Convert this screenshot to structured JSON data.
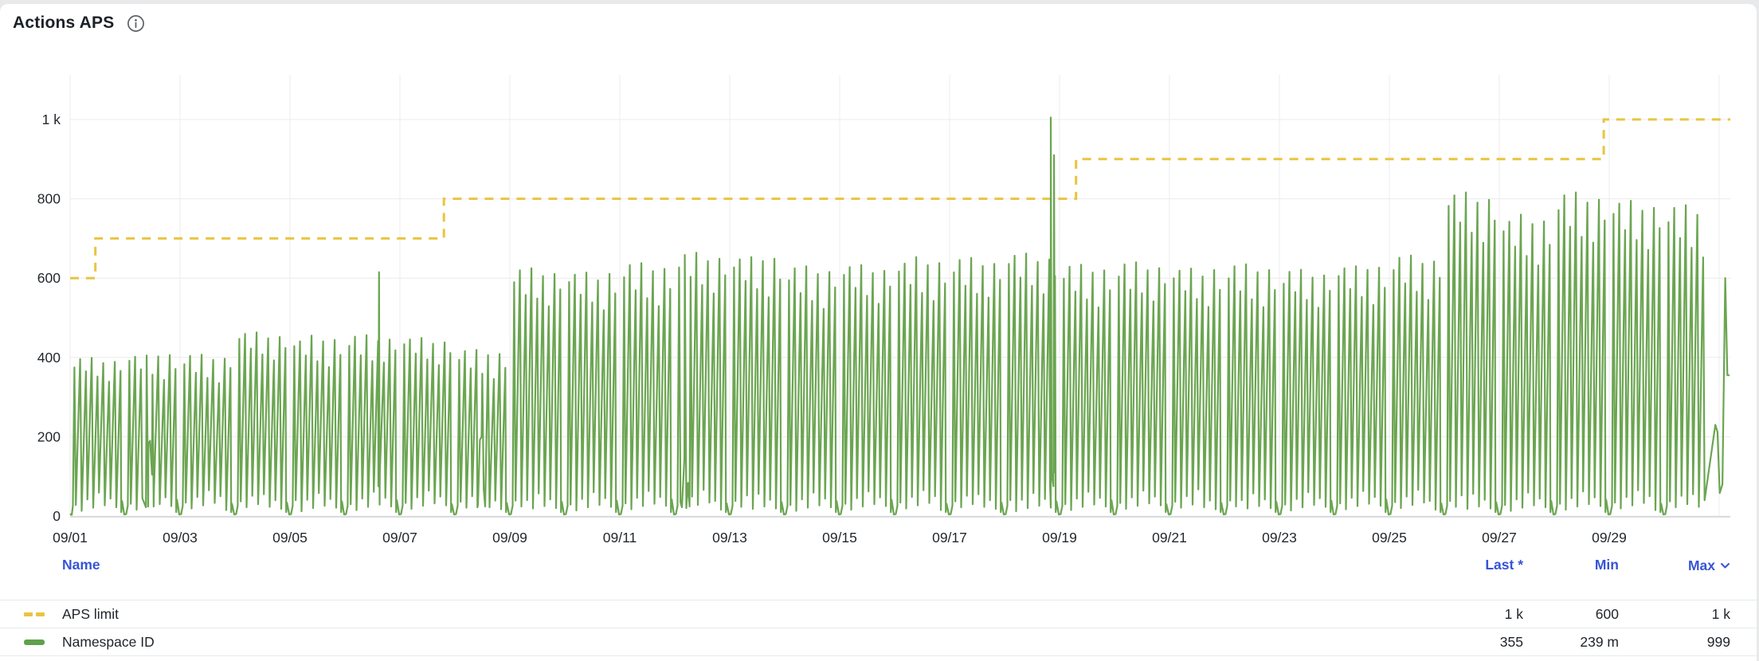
{
  "panel": {
    "title": "Actions APS"
  },
  "colors": {
    "accent_blue": "#3654d4",
    "series_green": "#6ba551",
    "series_yellow": "#e9c440",
    "grid": "#ececec",
    "axis_line": "#d0d3d5",
    "text_dark": "#24292e",
    "page_bg": "#e8e9ea",
    "card_bg": "#ffffff"
  },
  "chart_data": {
    "type": "line",
    "title": "Actions APS",
    "x_tick_labels": [
      "09/01",
      "09/03",
      "09/05",
      "09/07",
      "09/09",
      "09/11",
      "09/13",
      "09/15",
      "09/17",
      "09/19",
      "09/21",
      "09/23",
      "09/25",
      "09/27",
      "09/29"
    ],
    "x_axis_span_days": 30.2,
    "y_ticks": [
      {
        "value": 0,
        "label": "0"
      },
      {
        "value": 200,
        "label": "200"
      },
      {
        "value": 400,
        "label": "400"
      },
      {
        "value": 600,
        "label": "600"
      },
      {
        "value": 800,
        "label": "800"
      },
      {
        "value": 1000,
        "label": "1 k"
      }
    ],
    "ylim": [
      0,
      1050
    ],
    "grid": true,
    "legend_position": "bottom-table",
    "series": [
      {
        "name": "APS limit",
        "color": "#e9c440",
        "line_style": "dashed",
        "shape": "step",
        "steps": [
          {
            "start_day": 0.0,
            "value": 600
          },
          {
            "start_day": 0.46,
            "value": 700
          },
          {
            "start_day": 6.8,
            "value": 800
          },
          {
            "start_day": 18.3,
            "value": 900
          },
          {
            "start_day": 27.9,
            "value": 1000
          }
        ]
      },
      {
        "name": "Namespace ID",
        "color": "#6ba551",
        "line_style": "solid",
        "shape": "daily-spike-clusters",
        "daily_peaks": [
          400,
          410,
          405,
          465,
          450,
          455,
          452,
          415,
          625,
          618,
          635,
          665,
          658,
          628,
          635,
          648,
          650,
          665,
          630,
          640,
          628,
          632,
          622,
          635,
          655,
          818,
          755,
          815,
          798,
          780
        ],
        "spike_profile": [
          0.95,
          0.99,
          0.9,
          1.0,
          0.87,
          0.97,
          0.84,
          0.98,
          0.91
        ],
        "spike_lows": [
          28,
          12,
          40,
          18,
          55,
          22,
          38,
          15,
          30
        ],
        "plateaus": [
          {
            "day": 1.45,
            "value": 190
          },
          {
            "day": 7.48,
            "value": 200
          },
          {
            "day": 11.2,
            "value": 152
          }
        ],
        "tall_spikes": [
          {
            "day": 5.62,
            "value": 615
          },
          {
            "day": 17.84,
            "value": 1005
          },
          {
            "day": 17.9,
            "value": 910
          }
        ],
        "tail": [
          {
            "day": 29.93,
            "value": 230
          },
          {
            "day": 29.97,
            "value": 212
          },
          {
            "day": 30.01,
            "value": 58
          },
          {
            "day": 30.06,
            "value": 80
          },
          {
            "day": 30.11,
            "value": 600
          },
          {
            "day": 30.15,
            "value": 355
          },
          {
            "day": 30.19,
            "value": 355
          }
        ]
      }
    ]
  },
  "legend": {
    "headers": [
      {
        "label": "Name"
      },
      {
        "label": "Last *"
      },
      {
        "label": "Min"
      },
      {
        "label": "Max",
        "sort": "desc"
      }
    ],
    "rows": [
      {
        "name": "APS limit",
        "swatch": "dashed-yellow",
        "last": "1 k",
        "min": "600",
        "max": "1 k"
      },
      {
        "name": "Namespace ID",
        "swatch": "solid-green",
        "last": "355",
        "min": "239 m",
        "max": "999"
      }
    ]
  }
}
